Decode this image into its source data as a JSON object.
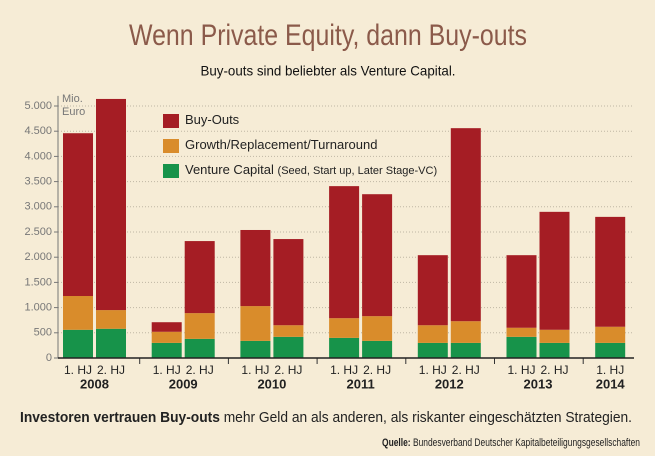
{
  "chart_data": {
    "type": "stacked_bar",
    "title": "Wenn Private Equity, dann Buy-outs",
    "subtitle": "Buy-outs sind beliebter als Venture Capital.",
    "y_axis_label": [
      "Mio.",
      "Euro"
    ],
    "groups": [
      {
        "name": "2008",
        "categories": [
          "1. HJ",
          "2. HJ"
        ]
      },
      {
        "name": "2009",
        "categories": [
          "1. HJ",
          "2. HJ"
        ]
      },
      {
        "name": "2010",
        "categories": [
          "1. HJ",
          "2. HJ"
        ]
      },
      {
        "name": "2011",
        "categories": [
          "1. HJ",
          "2. HJ"
        ]
      },
      {
        "name": "2012",
        "categories": [
          "1. HJ",
          "2. HJ"
        ]
      },
      {
        "name": "2013",
        "categories": [
          "1. HJ",
          "2. HJ"
        ]
      },
      {
        "name": "2014",
        "categories": [
          "1. HJ"
        ]
      }
    ],
    "series": [
      {
        "name": "Venture Capital",
        "legend_note": "(Seed, Start up, Later Stage-VC)",
        "color": "#17934a",
        "values": [
          560,
          580,
          300,
          380,
          340,
          420,
          400,
          340,
          300,
          300,
          420,
          300,
          300
        ]
      },
      {
        "name": "Growth/Replacement/Turnaround",
        "color": "#d98c2b",
        "values": [
          670,
          370,
          220,
          510,
          690,
          230,
          390,
          490,
          350,
          430,
          180,
          260,
          320
        ]
      },
      {
        "name": "Buy-Outs",
        "color": "#a51d24",
        "values": [
          3230,
          4190,
          190,
          1430,
          1510,
          1710,
          2620,
          2420,
          1390,
          3830,
          1440,
          2340,
          2180
        ]
      }
    ],
    "ylim": [
      0,
      5200
    ],
    "yticks": [
      0,
      {
        "value": 500,
        "label": "500"
      },
      {
        "value": 1000,
        "label": "1.000"
      },
      {
        "value": 1500,
        "label": "1.500"
      },
      {
        "value": 2000,
        "label": "2.000"
      },
      {
        "value": 2500,
        "label": "2.500"
      },
      {
        "value": 3000,
        "label": "3.000"
      },
      {
        "value": 3500,
        "label": "3.500"
      },
      {
        "value": 4000,
        "label": "4.000"
      },
      {
        "value": 4500,
        "label": "4.500"
      },
      {
        "value": 5000,
        "label": "5.000"
      }
    ],
    "grid": true,
    "footer": {
      "bold": "Investoren vertrauen Buy-outs",
      "text": " mehr Geld an als anderen, als riskanter eingeschätzten Strategien."
    },
    "source": {
      "label": "Quelle:",
      "text": " Bundesverband Deutscher Kapitalbeteiligungsgesellschaften"
    }
  }
}
